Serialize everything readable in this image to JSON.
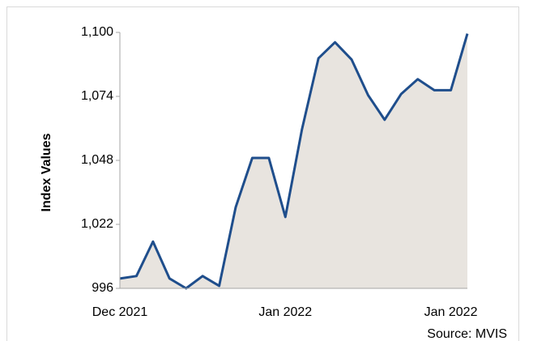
{
  "chart_data": {
    "type": "area-line",
    "y_label": "Index Values",
    "source": "Source: MVIS",
    "categories": [
      "Dec 2021",
      null,
      null,
      null,
      null,
      null,
      null,
      null,
      null,
      null,
      "Jan 2022",
      null,
      null,
      null,
      null,
      null,
      null,
      null,
      null,
      null,
      "Jan 2022",
      null
    ],
    "series": [
      {
        "color": "#1f4e8c",
        "fill": "#e8e4df",
        "values": [
          1000,
          1001,
          1015,
          1000,
          996,
          1001,
          997,
          1029,
          1049,
          1049,
          1025,
          1060.5,
          1089.5,
          1096,
          1089,
          1074.5,
          1064.5,
          1075,
          1081,
          1076.5,
          1076.5,
          1099.5
        ]
      }
    ],
    "ylim": [
      996,
      1100
    ],
    "yticks": [
      996,
      {
        "value": 1022,
        "label": "1,022"
      },
      {
        "value": 1048,
        "label": "1,048"
      },
      {
        "value": 1074,
        "label": "1,074"
      },
      {
        "value": 1100,
        "label": "1,100"
      }
    ]
  }
}
